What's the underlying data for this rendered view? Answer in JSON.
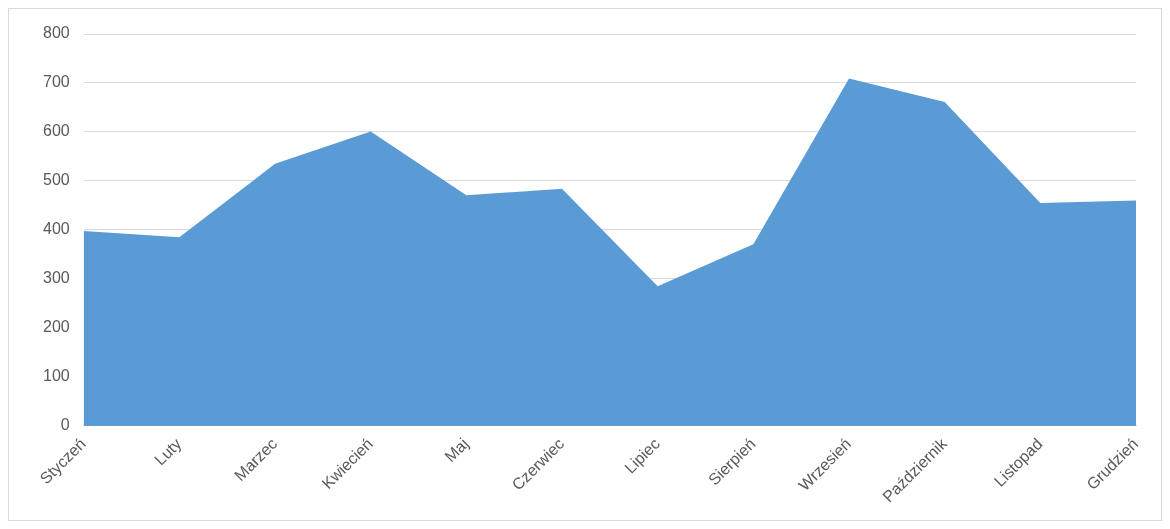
{
  "chart_data": {
    "type": "area",
    "categories": [
      "Styczeń",
      "Luty",
      "Marzec",
      "Kwiecień",
      "Maj",
      "Czerwiec",
      "Lipiec",
      "Sierpień",
      "Wrzesień",
      "Październik",
      "Listopad",
      "Grudzień"
    ],
    "values": [
      398,
      385,
      535,
      601,
      471,
      484,
      285,
      371,
      709,
      661,
      455,
      460
    ],
    "color": "#5b9bd5",
    "ylim": [
      0,
      800
    ],
    "yticks": [
      0,
      100,
      200,
      300,
      400,
      500,
      600,
      700,
      800
    ],
    "grid": "y",
    "legend": false
  }
}
